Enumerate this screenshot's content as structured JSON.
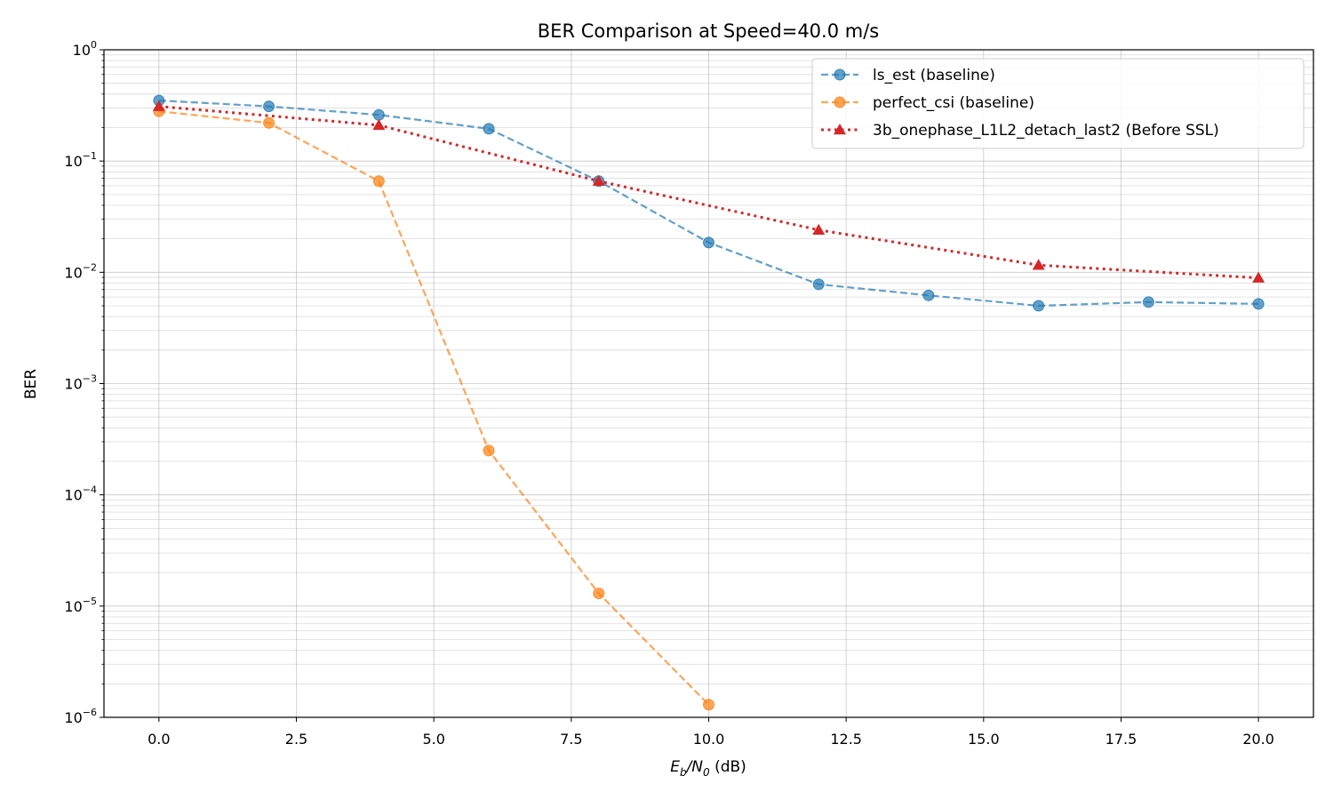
{
  "chart_data": {
    "type": "line",
    "title": "BER Comparison at Speed=40.0 m/s",
    "xlabel": {
      "prefix": "E",
      "sub1": "b",
      "mid": "/N",
      "sub2": "0",
      "suffix": " (dB)"
    },
    "ylabel": "BER",
    "xlim": [
      -1.0,
      21.0
    ],
    "ylim": [
      1e-06,
      1
    ],
    "yscale": "log",
    "grid": true,
    "legend_position": "top-right",
    "xticks": [
      0,
      2.5,
      5,
      7.5,
      10,
      12.5,
      15,
      17.5,
      20
    ],
    "xtick_labels": [
      "0.0",
      "2.5",
      "5.0",
      "7.5",
      "10.0",
      "12.5",
      "15.0",
      "17.5",
      "20.0"
    ],
    "yticks": [
      {
        "value": 1,
        "base": "10",
        "exp": "0"
      },
      {
        "value": 0.1,
        "base": "10",
        "exp": "−1"
      },
      {
        "value": 0.01,
        "base": "10",
        "exp": "−2"
      },
      {
        "value": 0.001,
        "base": "10",
        "exp": "−3"
      },
      {
        "value": 0.0001,
        "base": "10",
        "exp": "−4"
      },
      {
        "value": 1e-05,
        "base": "10",
        "exp": "−5"
      },
      {
        "value": 1e-06,
        "base": "10",
        "exp": "−6"
      }
    ],
    "series": [
      {
        "name": "ls_est (baseline)",
        "color": "#1f77b4",
        "linestyle": "dashed",
        "marker": "circle",
        "x": [
          0,
          2,
          4,
          6,
          8,
          10,
          12,
          14,
          16,
          18,
          20
        ],
        "y": [
          0.35,
          0.31,
          0.26,
          0.195,
          0.066,
          0.0185,
          0.0078,
          0.0062,
          0.005,
          0.0054,
          0.0052
        ]
      },
      {
        "name": "perfect_csi (baseline)",
        "color": "#ff7f0e",
        "linestyle": "dashed",
        "marker": "circle",
        "x": [
          0,
          2,
          4,
          6,
          8,
          10
        ],
        "y": [
          0.28,
          0.22,
          0.066,
          0.00025,
          1.3e-05,
          1.3e-06
        ]
      },
      {
        "name": "3b_onephase_L1L2_detach_last2 (Before SSL)",
        "color": "#d62728",
        "linestyle": "dotted",
        "marker": "triangle",
        "x": [
          0,
          4,
          8,
          12,
          16,
          20
        ],
        "y": [
          0.31,
          0.21,
          0.066,
          0.024,
          0.0116,
          0.0089
        ]
      }
    ]
  }
}
